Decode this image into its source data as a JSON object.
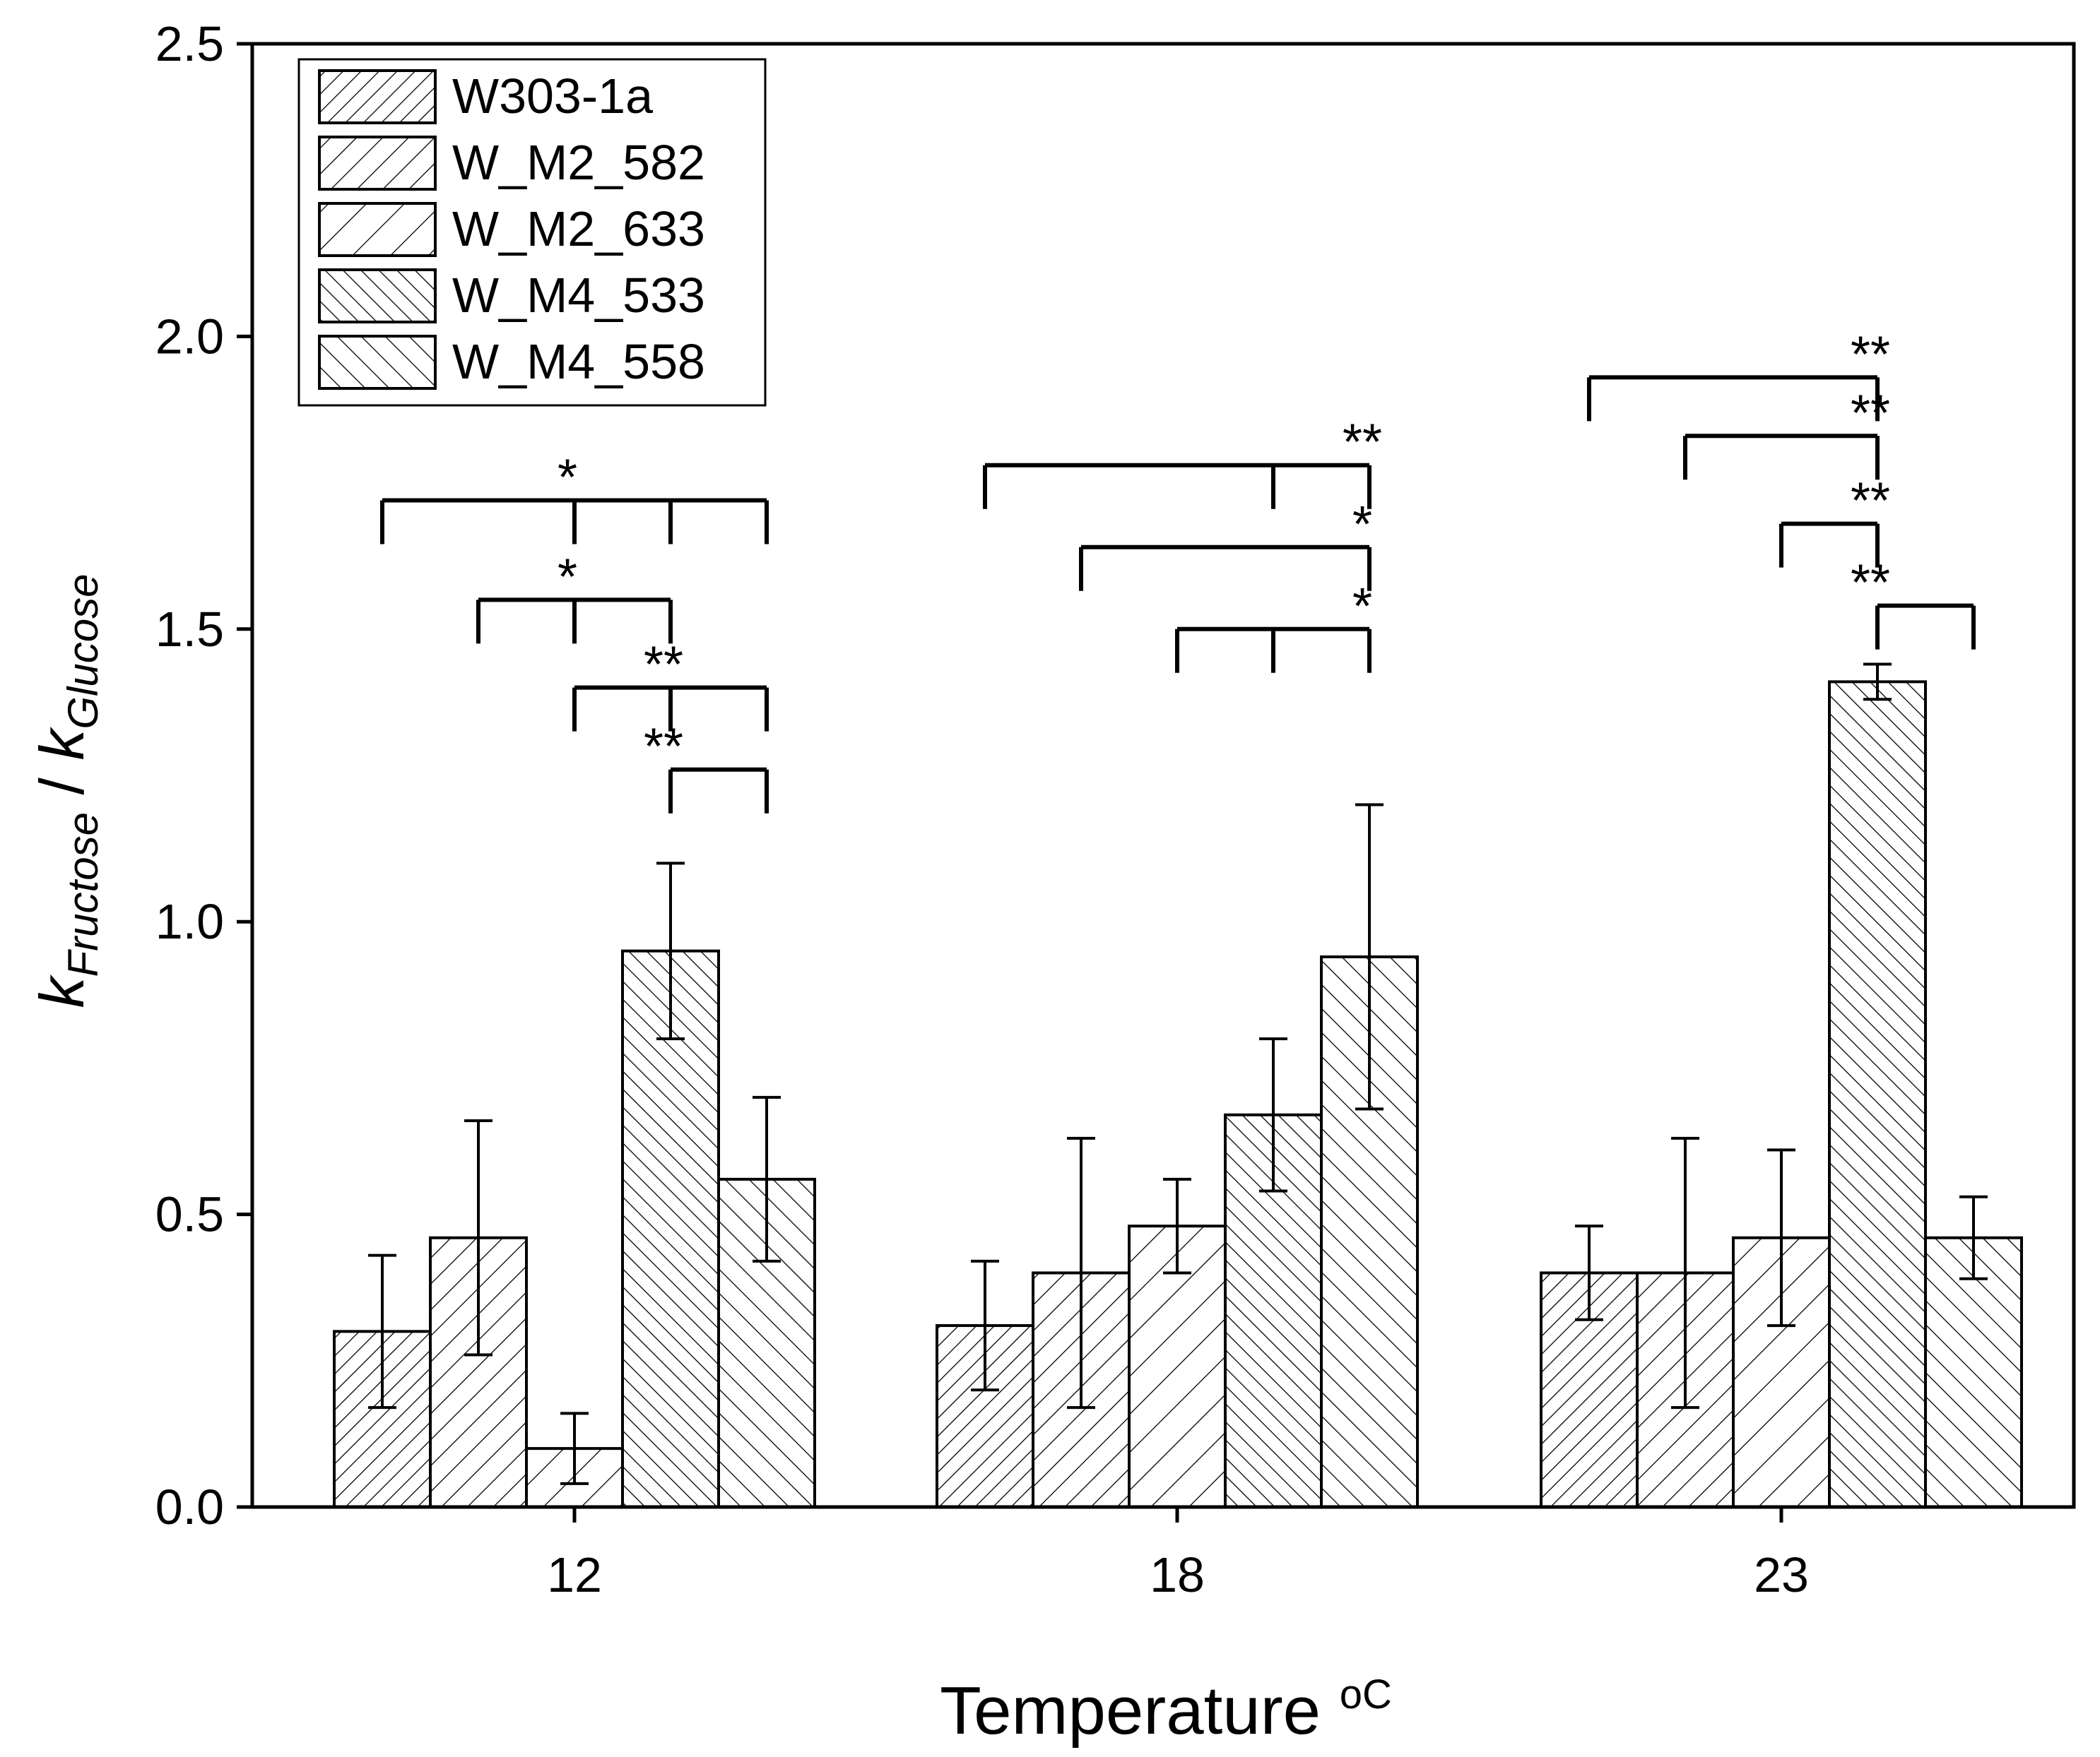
{
  "chart_data": {
    "type": "bar",
    "xlabel": "Temperature",
    "xlabel_unit": "oC",
    "ylabel": {
      "k1": "k",
      "sub1": "Fructose",
      "sep": " / ",
      "k2": "k",
      "sub2": "Glucose"
    },
    "ylim": [
      0,
      2.5
    ],
    "yticks": [
      "0.0",
      "0.5",
      "1.0",
      "1.5",
      "2.0",
      "2.5"
    ],
    "categories": [
      "12",
      "18",
      "23"
    ],
    "legend_position": "top-left",
    "series": [
      {
        "name": "W303-1a",
        "values": [
          0.3,
          0.31,
          0.4
        ],
        "errors": [
          0.13,
          0.11,
          0.08
        ],
        "hatch": "forward-dense"
      },
      {
        "name": "W_M2_582",
        "values": [
          0.46,
          0.4,
          0.4
        ],
        "errors": [
          0.2,
          0.23,
          0.23
        ],
        "hatch": "forward-medium"
      },
      {
        "name": "W_M2_633",
        "values": [
          0.1,
          0.48,
          0.46
        ],
        "errors": [
          0.06,
          0.08,
          0.15
        ],
        "hatch": "forward-sparse"
      },
      {
        "name": "W_M4_533",
        "values": [
          0.95,
          0.67,
          1.41
        ],
        "errors": [
          0.15,
          0.13,
          0.03
        ],
        "hatch": "back-dense"
      },
      {
        "name": "W_M4_558",
        "values": [
          0.56,
          0.94,
          0.46
        ],
        "errors": [
          0.14,
          0.26,
          0.07
        ],
        "hatch": "back-medium"
      }
    ],
    "significance": [
      {
        "group": 0,
        "label": "*",
        "y": 1.72,
        "pivot": 2,
        "legs": [
          0,
          2,
          3,
          4
        ]
      },
      {
        "group": 0,
        "label": "*",
        "y": 1.55,
        "pivot": 2,
        "legs": [
          1,
          2,
          3
        ]
      },
      {
        "group": 0,
        "label": "**",
        "y": 1.4,
        "pivot": 3,
        "legs": [
          2,
          3,
          4
        ]
      },
      {
        "group": 0,
        "label": "**",
        "y": 1.26,
        "pivot": 3,
        "legs": [
          3,
          4
        ]
      },
      {
        "group": 1,
        "label": "**",
        "y": 1.78,
        "pivot": 4,
        "legs": [
          0,
          3,
          4
        ]
      },
      {
        "group": 1,
        "label": "*",
        "y": 1.64,
        "pivot": 4,
        "legs": [
          1,
          4
        ]
      },
      {
        "group": 1,
        "label": "*",
        "y": 1.5,
        "pivot": 4,
        "legs": [
          2,
          3,
          4
        ]
      },
      {
        "group": 2,
        "label": "**",
        "y": 1.93,
        "pivot": 3,
        "legs": [
          0,
          3
        ]
      },
      {
        "group": 2,
        "label": "**",
        "y": 1.83,
        "pivot": 3,
        "legs": [
          1,
          3
        ]
      },
      {
        "group": 2,
        "label": "**",
        "y": 1.68,
        "pivot": 3,
        "legs": [
          2,
          3
        ]
      },
      {
        "group": 2,
        "label": "**",
        "y": 1.54,
        "pivot": 3,
        "legs": [
          3,
          4
        ]
      }
    ]
  }
}
